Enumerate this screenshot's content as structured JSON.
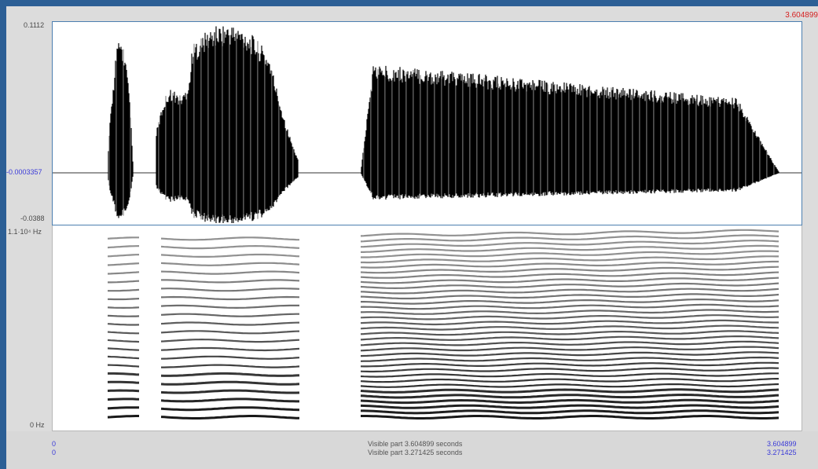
{
  "cursor_time": "3.604899",
  "waveform": {
    "y_max": "0.1112",
    "y_mid": "-0.0003357",
    "y_min": "-0.0388"
  },
  "spectrogram": {
    "y_max": "1.1·10⁴ Hz",
    "y_min": "0 Hz"
  },
  "bottom": {
    "left_start": "0",
    "left_start2": "0",
    "visible_part": "Visible part 3.604899 seconds",
    "visible_part2": "Visible part 3.271425 seconds",
    "right_end": "3.604899",
    "right_end2": "3.271425"
  },
  "colors": {
    "background": "#2c5f95",
    "panel": "#dcdcdc",
    "cursor_text": "#d62020",
    "axis_blue": "#3a3ad8"
  }
}
